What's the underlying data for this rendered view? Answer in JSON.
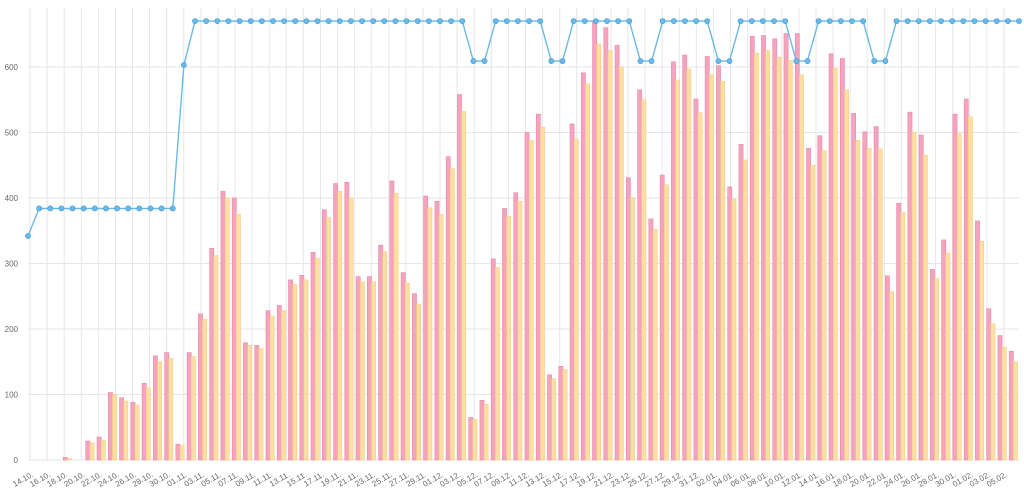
{
  "chart_data": {
    "type": "bar",
    "title": "",
    "xlabel": "",
    "ylabel": "",
    "ylim": [
      0,
      690
    ],
    "yticks": [
      0,
      100,
      200,
      300,
      400,
      500,
      600
    ],
    "grid": true,
    "legend": "none",
    "x_tick_labels": [
      "14.10.",
      "16.10.",
      "18.10.",
      "20.10.",
      "22.10.",
      "24.10.",
      "26.10.",
      "28.10.",
      "30.10.",
      "01.11.",
      "03.11.",
      "05.11.",
      "07.11.",
      "09.11.",
      "11.11.",
      "13.11.",
      "15.11.",
      "17.11.",
      "19.11.",
      "21.11.",
      "23.11.",
      "25.11.",
      "27.11.",
      "29.11.",
      "01.12.",
      "03.12.",
      "05.12.",
      "07.12.",
      "09.12.",
      "11.12.",
      "13.12.",
      "15.12.",
      "17.12.",
      "19.12.",
      "21.12.",
      "23.12.",
      "25.12.",
      "27.12.",
      "29.12.",
      "31.12.",
      "02.01.",
      "04.01.",
      "06.01.",
      "08.01.",
      "10.01.",
      "12.01.",
      "14.01.",
      "16.01.",
      "18.01.",
      "20.01.",
      "22.01.",
      "24.01.",
      "26.01.",
      "28.01.",
      "30.01.",
      "01.02.",
      "03.02.",
      "05.02."
    ],
    "series": [
      {
        "type": "bar",
        "color": "#f4a4bd",
        "values": [
          0,
          0,
          0,
          4,
          0,
          29,
          35,
          103,
          95,
          88,
          117,
          159,
          164,
          24,
          164,
          223,
          323,
          410,
          400,
          179,
          175,
          228,
          236,
          275,
          282,
          317,
          382,
          422,
          424,
          280,
          280,
          328,
          426,
          286,
          254,
          403,
          395,
          463,
          558,
          65,
          91,
          307,
          384,
          408,
          500,
          528,
          130,
          143,
          513,
          591,
          669,
          660,
          633,
          431,
          565,
          368,
          435,
          608,
          618,
          551,
          616,
          602,
          417,
          482,
          647,
          648,
          643,
          651,
          651,
          476,
          495,
          620,
          613,
          529,
          501,
          509,
          281,
          392,
          531,
          496,
          291,
          336,
          528,
          551,
          365,
          231,
          190,
          166
        ]
      },
      {
        "type": "bar",
        "color": "#fddfa6",
        "values": [
          0,
          0,
          0,
          2,
          0,
          26,
          30,
          100,
          90,
          84,
          110,
          150,
          155,
          22,
          158,
          215,
          312,
          400,
          375,
          175,
          170,
          220,
          228,
          268,
          275,
          308,
          370,
          410,
          400,
          272,
          272,
          318,
          407,
          270,
          238,
          385,
          375,
          445,
          532,
          62,
          85,
          294,
          372,
          395,
          488,
          508,
          124,
          138,
          490,
          574,
          635,
          625,
          600,
          400,
          550,
          352,
          420,
          580,
          597,
          530,
          588,
          578,
          398,
          458,
          621,
          625,
          615,
          610,
          588,
          450,
          472,
          598,
          565,
          488,
          476,
          475,
          257,
          378,
          500,
          465,
          277,
          316,
          498,
          524,
          334,
          208,
          172,
          150
        ]
      },
      {
        "type": "line",
        "color": "#6cb8e6",
        "values": [
          342,
          384,
          384,
          384,
          384,
          384,
          384,
          384,
          384,
          384,
          384,
          384,
          384,
          384,
          603,
          670,
          670,
          670,
          670,
          670,
          670,
          670,
          670,
          670,
          670,
          670,
          670,
          670,
          670,
          670,
          670,
          670,
          670,
          670,
          670,
          670,
          670,
          670,
          670,
          670,
          609,
          609,
          670,
          670,
          670,
          670,
          670,
          609,
          609,
          670,
          670,
          670,
          670,
          670,
          670,
          609,
          609,
          670,
          670,
          670,
          670,
          670,
          609,
          609,
          670,
          670,
          670,
          670,
          670,
          609,
          609,
          670,
          670,
          670,
          670,
          670,
          609,
          609,
          670,
          670,
          670,
          670,
          670,
          670,
          670,
          670,
          670,
          670,
          670,
          670
        ]
      }
    ]
  }
}
